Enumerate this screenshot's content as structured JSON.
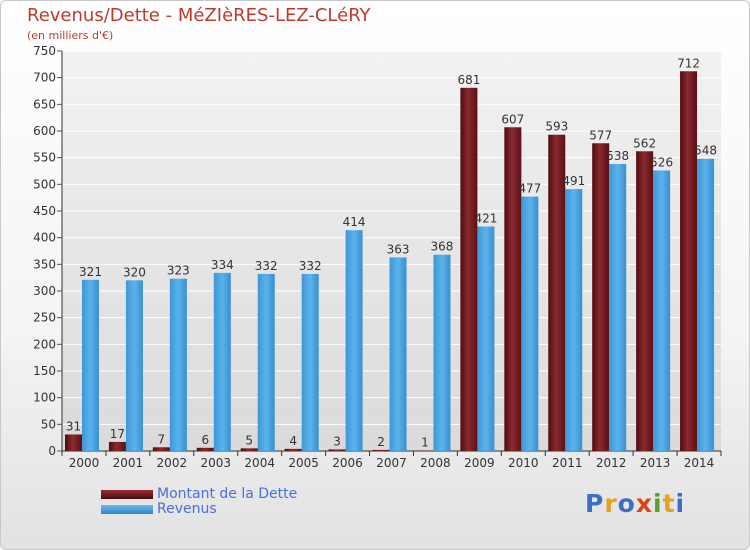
{
  "chart_data": {
    "type": "bar",
    "title": "Revenus/Dette - MéZIèRES-LEZ-CLéRY",
    "subtitle": "(en milliers d'€)",
    "categories": [
      "2000",
      "2001",
      "2002",
      "2003",
      "2004",
      "2005",
      "2006",
      "2007",
      "2008",
      "2009",
      "2010",
      "2011",
      "2012",
      "2013",
      "2014"
    ],
    "series": [
      {
        "name": "Montant de la Dette",
        "values": [
          31,
          17,
          7,
          6,
          5,
          4,
          3,
          2,
          1,
          681,
          607,
          593,
          577,
          562,
          712
        ]
      },
      {
        "name": "Revenus",
        "values": [
          321,
          320,
          323,
          334,
          332,
          332,
          414,
          363,
          368,
          421,
          477,
          491,
          538,
          526,
          548
        ]
      }
    ],
    "yticks": [
      0,
      50,
      100,
      150,
      200,
      250,
      300,
      350,
      400,
      450,
      500,
      550,
      600,
      650,
      700,
      750
    ],
    "ylim": [
      0,
      750
    ],
    "grid": true,
    "legend_position": "bottom-left",
    "colors": {
      "dette": "#7a1f24",
      "revenus": "#4aa3df",
      "title": "#c0392b",
      "legend_text": "#4a6fd8"
    }
  },
  "logo": {
    "text": "Proxiti",
    "letters": [
      {
        "ch": "P",
        "color": "#3b6fc4"
      },
      {
        "ch": "r",
        "color": "#e8a11f"
      },
      {
        "ch": "o",
        "color": "#3b6fc4"
      },
      {
        "ch": "x",
        "color": "#d9441b"
      },
      {
        "ch": "i",
        "color": "#5aa02c"
      },
      {
        "ch": "t",
        "color": "#e8a11f"
      },
      {
        "ch": "i",
        "color": "#3b6fc4"
      }
    ]
  }
}
